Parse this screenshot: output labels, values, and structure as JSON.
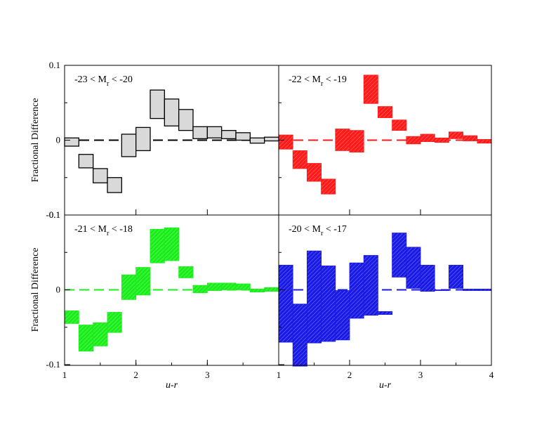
{
  "chart_data": {
    "type": "bar",
    "ylabel": "Fractional Difference",
    "xlabel": "u-r",
    "ylim": [
      -0.1,
      0.1
    ],
    "yticks": [
      {
        "value": 0.1,
        "label": "0.1"
      },
      {
        "value": 0,
        "label": "0"
      },
      {
        "value": -0.1,
        "label": "-0.1"
      }
    ],
    "xticks": [
      {
        "value": 1,
        "label": "1"
      },
      {
        "value": 2,
        "label": "2"
      },
      {
        "value": 3,
        "label": "3"
      },
      {
        "value": 4,
        "label": "4"
      }
    ],
    "xlim": [
      1,
      4
    ],
    "bin_width": 0.2,
    "panels": [
      {
        "label": {
          "pre": "-23 < M",
          "sub": "r",
          "post": " < -20"
        },
        "color": "#d9d9d9",
        "edge": "#000000",
        "hatched": false,
        "boxes": [
          {
            "x": 1.1,
            "lo": -0.008,
            "hi": 0.003
          },
          {
            "x": 1.3,
            "lo": -0.037,
            "hi": -0.019
          },
          {
            "x": 1.5,
            "lo": -0.057,
            "hi": -0.038
          },
          {
            "x": 1.7,
            "lo": -0.07,
            "hi": -0.05
          },
          {
            "x": 1.9,
            "lo": -0.022,
            "hi": 0.008
          },
          {
            "x": 2.1,
            "lo": -0.014,
            "hi": 0.017
          },
          {
            "x": 2.3,
            "lo": 0.029,
            "hi": 0.067
          },
          {
            "x": 2.5,
            "lo": 0.019,
            "hi": 0.055
          },
          {
            "x": 2.7,
            "lo": 0.013,
            "hi": 0.041
          },
          {
            "x": 2.9,
            "lo": 0.002,
            "hi": 0.018
          },
          {
            "x": 3.1,
            "lo": 0.003,
            "hi": 0.018
          },
          {
            "x": 3.3,
            "lo": 0.002,
            "hi": 0.013
          },
          {
            "x": 3.5,
            "lo": 0.0,
            "hi": 0.01
          },
          {
            "x": 3.7,
            "lo": -0.004,
            "hi": 0.003
          },
          {
            "x": 3.9,
            "lo": -0.001,
            "hi": 0.004
          }
        ]
      },
      {
        "label": {
          "pre": "-22 < M",
          "sub": "r",
          "post": " < -19"
        },
        "color": "#ff1a1a",
        "edge": "#ff1a1a",
        "hatched": true,
        "boxes": [
          {
            "x": 1.1,
            "lo": -0.012,
            "hi": 0.007
          },
          {
            "x": 1.3,
            "lo": -0.038,
            "hi": -0.014
          },
          {
            "x": 1.5,
            "lo": -0.055,
            "hi": -0.031
          },
          {
            "x": 1.7,
            "lo": -0.072,
            "hi": -0.052
          },
          {
            "x": 1.9,
            "lo": -0.014,
            "hi": 0.015
          },
          {
            "x": 2.1,
            "lo": -0.016,
            "hi": 0.013
          },
          {
            "x": 2.3,
            "lo": 0.049,
            "hi": 0.087
          },
          {
            "x": 2.5,
            "lo": 0.03,
            "hi": 0.045
          },
          {
            "x": 2.7,
            "lo": 0.013,
            "hi": 0.027
          },
          {
            "x": 2.9,
            "lo": -0.005,
            "hi": 0.005
          },
          {
            "x": 3.1,
            "lo": -0.002,
            "hi": 0.008
          },
          {
            "x": 3.3,
            "lo": -0.003,
            "hi": 0.003
          },
          {
            "x": 3.5,
            "lo": 0.002,
            "hi": 0.011
          },
          {
            "x": 3.7,
            "lo": -0.001,
            "hi": 0.006
          },
          {
            "x": 3.9,
            "lo": -0.004,
            "hi": 0.001
          }
        ]
      },
      {
        "label": {
          "pre": "-21 < M",
          "sub": "r",
          "post": " < -18"
        },
        "color": "#1aee1a",
        "edge": "#1aee1a",
        "hatched": true,
        "boxes": [
          {
            "x": 1.1,
            "lo": -0.045,
            "hi": -0.028
          },
          {
            "x": 1.3,
            "lo": -0.082,
            "hi": -0.047
          },
          {
            "x": 1.5,
            "lo": -0.075,
            "hi": -0.044
          },
          {
            "x": 1.7,
            "lo": -0.057,
            "hi": -0.03
          },
          {
            "x": 1.9,
            "lo": -0.013,
            "hi": 0.02
          },
          {
            "x": 2.1,
            "lo": -0.007,
            "hi": 0.03
          },
          {
            "x": 2.3,
            "lo": 0.036,
            "hi": 0.081
          },
          {
            "x": 2.5,
            "lo": 0.039,
            "hi": 0.083
          },
          {
            "x": 2.7,
            "lo": 0.016,
            "hi": 0.031
          },
          {
            "x": 2.9,
            "lo": -0.004,
            "hi": 0.006
          },
          {
            "x": 3.1,
            "lo": -0.001,
            "hi": 0.009
          },
          {
            "x": 3.3,
            "lo": 0.0,
            "hi": 0.009
          },
          {
            "x": 3.5,
            "lo": 0.0,
            "hi": 0.008
          },
          {
            "x": 3.7,
            "lo": -0.003,
            "hi": 0.001
          },
          {
            "x": 3.9,
            "lo": -0.002,
            "hi": 0.003
          }
        ]
      },
      {
        "label": {
          "pre": "-20 < M",
          "sub": "r",
          "post": " < -17"
        },
        "color": "#1a1ae6",
        "edge": "#1a1ae6",
        "hatched": true,
        "boxes": [
          {
            "x": 1.1,
            "lo": -0.07,
            "hi": 0.033
          },
          {
            "x": 1.3,
            "lo": -0.102,
            "hi": -0.019
          },
          {
            "x": 1.5,
            "lo": -0.071,
            "hi": 0.052
          },
          {
            "x": 1.7,
            "lo": -0.069,
            "hi": 0.032
          },
          {
            "x": 1.9,
            "lo": -0.067,
            "hi": -0.001
          },
          {
            "x": 2.1,
            "lo": -0.038,
            "hi": 0.036
          },
          {
            "x": 2.3,
            "lo": -0.034,
            "hi": 0.046
          },
          {
            "x": 2.5,
            "lo": -0.033,
            "hi": -0.029
          },
          {
            "x": 2.7,
            "lo": 0.017,
            "hi": 0.076
          },
          {
            "x": 2.9,
            "lo": 0.002,
            "hi": 0.057
          },
          {
            "x": 3.1,
            "lo": -0.002,
            "hi": 0.033
          },
          {
            "x": 3.3,
            "lo": -0.001,
            "hi": 0.0
          },
          {
            "x": 3.5,
            "lo": 0.002,
            "hi": 0.033
          },
          {
            "x": 3.7,
            "lo": -0.001,
            "hi": 0.001
          },
          {
            "x": 3.9,
            "lo": -0.001,
            "hi": 0.001
          }
        ]
      }
    ]
  }
}
